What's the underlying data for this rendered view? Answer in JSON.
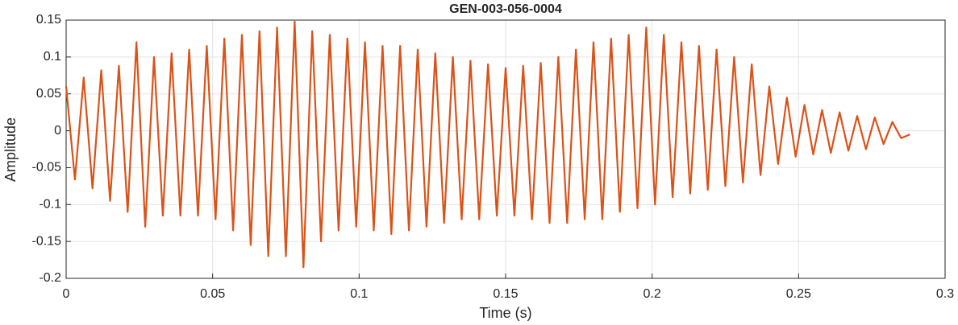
{
  "chart_data": {
    "type": "line",
    "title": "GEN-003-056-0004",
    "xlabel": "Time (s)",
    "ylabel": "Amplitude",
    "x": [
      0,
      0.003,
      0.006,
      0.009,
      0.012,
      0.015,
      0.018,
      0.021,
      0.024,
      0.027,
      0.03,
      0.033,
      0.036,
      0.039,
      0.042,
      0.045,
      0.048,
      0.051,
      0.054,
      0.057,
      0.06,
      0.063,
      0.066,
      0.069,
      0.072,
      0.075,
      0.078,
      0.081,
      0.084,
      0.087,
      0.09,
      0.093,
      0.096,
      0.099,
      0.102,
      0.105,
      0.108,
      0.111,
      0.114,
      0.117,
      0.12,
      0.123,
      0.126,
      0.129,
      0.132,
      0.135,
      0.138,
      0.141,
      0.144,
      0.147,
      0.15,
      0.153,
      0.156,
      0.159,
      0.162,
      0.165,
      0.168,
      0.171,
      0.174,
      0.177,
      0.18,
      0.183,
      0.186,
      0.189,
      0.192,
      0.195,
      0.198,
      0.201,
      0.204,
      0.207,
      0.21,
      0.213,
      0.216,
      0.219,
      0.222,
      0.225,
      0.228,
      0.231,
      0.234,
      0.237,
      0.24,
      0.243,
      0.246,
      0.249,
      0.252,
      0.255,
      0.258,
      0.261,
      0.264,
      0.267,
      0.27,
      0.273,
      0.276,
      0.279,
      0.282,
      0.285,
      0.288
    ],
    "series": [
      {
        "color": "#D95319",
        "values": [
          0.06,
          -0.066,
          0.072,
          -0.078,
          0.082,
          -0.095,
          0.088,
          -0.11,
          0.12,
          -0.13,
          0.1,
          -0.115,
          0.105,
          -0.115,
          0.11,
          -0.115,
          0.115,
          -0.12,
          0.125,
          -0.135,
          0.13,
          -0.155,
          0.135,
          -0.17,
          0.14,
          -0.17,
          0.148,
          -0.185,
          0.135,
          -0.15,
          0.13,
          -0.135,
          0.125,
          -0.13,
          0.12,
          -0.135,
          0.115,
          -0.14,
          0.115,
          -0.135,
          0.11,
          -0.13,
          0.105,
          -0.125,
          0.1,
          -0.12,
          0.095,
          -0.12,
          0.09,
          -0.115,
          0.085,
          -0.115,
          0.088,
          -0.12,
          0.092,
          -0.125,
          0.1,
          -0.125,
          0.11,
          -0.12,
          0.12,
          -0.12,
          0.125,
          -0.11,
          0.13,
          -0.105,
          0.14,
          -0.1,
          0.13,
          -0.09,
          0.12,
          -0.085,
          0.115,
          -0.08,
          0.11,
          -0.075,
          0.1,
          -0.07,
          0.09,
          -0.06,
          0.06,
          -0.045,
          0.045,
          -0.035,
          0.035,
          -0.032,
          0.028,
          -0.03,
          0.025,
          -0.027,
          0.02,
          -0.025,
          0.018,
          -0.018,
          0.012,
          -0.01,
          -0.005
        ]
      }
    ],
    "xlim": [
      0,
      0.3
    ],
    "xticks": [
      0,
      0.05,
      0.1,
      0.15,
      0.2,
      0.25,
      0.3
    ],
    "ylim": [
      -0.2,
      0.15
    ],
    "yticks": [
      -0.2,
      -0.15,
      -0.1,
      -0.05,
      0,
      0.05,
      0.1,
      0.15
    ],
    "grid": true
  }
}
